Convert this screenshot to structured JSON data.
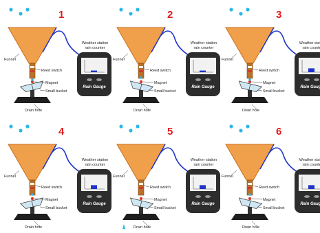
{
  "labels": {
    "station_line1": "Weather station",
    "station_line2": "rain counter",
    "funnel": "Funnel",
    "reed_switch": "Reed switch",
    "magnet": "Magnet",
    "small_bucket": "Small bucket",
    "drain_hole": "Drain hole",
    "gauge_brand": "Rain Gauge"
  },
  "colors": {
    "funnel": "#f0a04a",
    "funnel_edge": "#c9701c",
    "droplet": "#2bb7e8",
    "wire": "#1f35c8",
    "step_number": "#e01b1b",
    "device_body": "#2d2d2d",
    "bar": "#1f35c8"
  },
  "panels": [
    {
      "number": "1",
      "drops": "top",
      "bucket": "left",
      "bar_fill": 0.15,
      "drain_drop": false
    },
    {
      "number": "2",
      "drops": "top",
      "bucket": "right",
      "bar_fill": 0.15,
      "drain_drop": false
    },
    {
      "number": "3",
      "drops": "top",
      "bucket": "right",
      "bar_fill": 0.35,
      "drain_drop": false
    },
    {
      "number": "4",
      "drops": "top",
      "bucket": "left",
      "bar_fill": 0.35,
      "drain_drop": false
    },
    {
      "number": "5",
      "drops": "top",
      "bucket": "right",
      "bar_fill": 0.35,
      "drain_drop": true
    },
    {
      "number": "6",
      "drops": "top",
      "bucket": "right",
      "bar_fill": 0.35,
      "drain_drop": false
    }
  ]
}
